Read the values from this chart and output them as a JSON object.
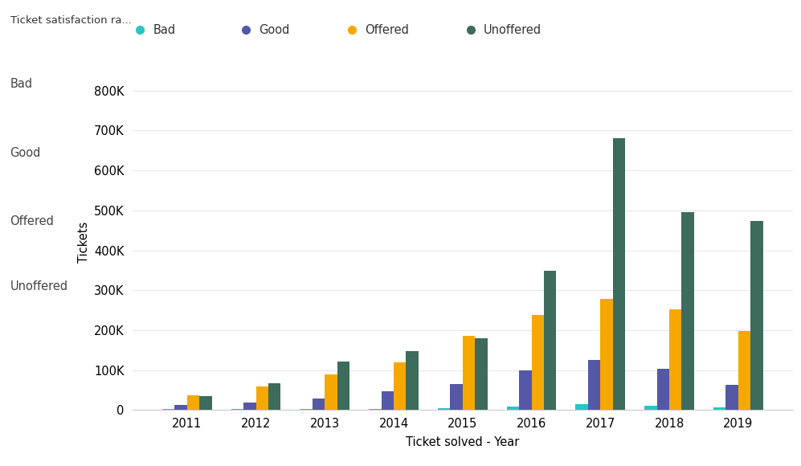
{
  "years": [
    2011,
    2012,
    2013,
    2014,
    2015,
    2016,
    2017,
    2018,
    2019
  ],
  "series": {
    "Bad": [
      2000,
      3000,
      3000,
      3000,
      4000,
      8000,
      15000,
      10000,
      7000
    ],
    "Good": [
      12000,
      18000,
      28000,
      48000,
      65000,
      100000,
      125000,
      103000,
      63000
    ],
    "Offered": [
      38000,
      60000,
      90000,
      120000,
      185000,
      238000,
      278000,
      252000,
      197000
    ],
    "Unoffered": [
      35000,
      68000,
      122000,
      148000,
      180000,
      348000,
      680000,
      495000,
      473000
    ]
  },
  "colors": {
    "Bad": "#29c4c4",
    "Good": "#5558a6",
    "Offered": "#f5a800",
    "Unoffered": "#3d6b5c"
  },
  "ylabel": "Tickets",
  "xlabel": "Ticket solved - Year",
  "title": "Ticket satisfaction ra...",
  "legend_labels": [
    "Bad",
    "Good",
    "Offered",
    "Unoffered"
  ],
  "ylim": [
    0,
    840000
  ],
  "yticks": [
    0,
    100000,
    200000,
    300000,
    400000,
    500000,
    600000,
    700000,
    800000
  ],
  "ytick_labels": [
    "0",
    "100K",
    "200K",
    "300K",
    "400K",
    "500K",
    "600K",
    "700K",
    "800K"
  ],
  "panel_bg": "#efefef",
  "panel_title": "Ticket satisfaction ra...",
  "panel_items": [
    "Bad",
    "Good",
    "Offered",
    "Unoffered"
  ]
}
